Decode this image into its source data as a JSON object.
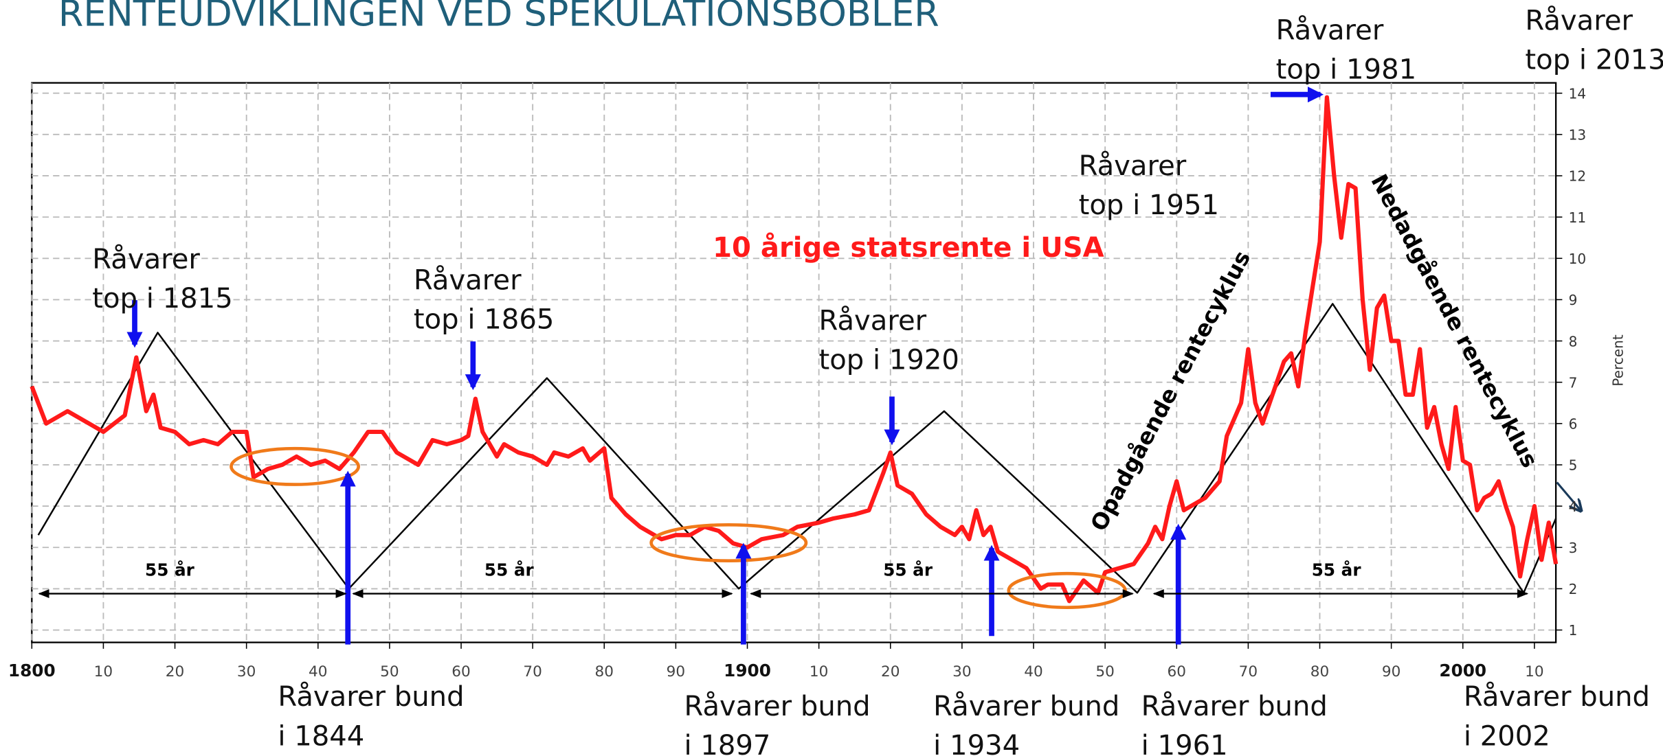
{
  "chart_data": {
    "type": "line",
    "title": "RENTEUDVIKLINGEN VED SPEKULATIONSBOBLER",
    "subtitle": "10 årige statsrente i USA",
    "y_label": "Percent",
    "xlim": [
      1800,
      2013
    ],
    "ylim": [
      0.7,
      14.25
    ],
    "xticks": [
      1800,
      {
        "value": 1810,
        "label": "10"
      },
      {
        "value": 1820,
        "label": "20"
      },
      {
        "value": 1830,
        "label": "30"
      },
      {
        "value": 1840,
        "label": "40"
      },
      {
        "value": 1850,
        "label": "50"
      },
      {
        "value": 1860,
        "label": "60"
      },
      {
        "value": 1870,
        "label": "70"
      },
      {
        "value": 1880,
        "label": "80"
      },
      {
        "value": 1890,
        "label": "90"
      },
      1900,
      {
        "value": 1910,
        "label": "10"
      },
      {
        "value": 1920,
        "label": "20"
      },
      {
        "value": 1930,
        "label": "30"
      },
      {
        "value": 1940,
        "label": "40"
      },
      {
        "value": 1950,
        "label": "50"
      },
      {
        "value": 1960,
        "label": "60"
      },
      {
        "value": 1970,
        "label": "70"
      },
      {
        "value": 1980,
        "label": "80"
      },
      {
        "value": 1990,
        "label": "90"
      },
      2000,
      {
        "value": 2010,
        "label": "10"
      }
    ],
    "yticks": [
      1,
      2,
      3,
      4,
      5,
      6,
      7,
      8,
      9,
      10,
      11,
      12,
      13,
      14
    ],
    "grid": true,
    "series": [
      {
        "color": "#ff1a1a",
        "x": [
          1800,
          1802,
          1805,
          1807,
          1810,
          1813,
          1814.6,
          1816,
          1817,
          1818,
          1820,
          1822,
          1824,
          1826,
          1828,
          1830,
          1831,
          1833,
          1835,
          1837,
          1839,
          1841,
          1843,
          1845,
          1847,
          1849,
          1851,
          1854,
          1856,
          1858,
          1860,
          1861,
          1862,
          1863,
          1865,
          1866,
          1868,
          1870,
          1872,
          1873,
          1875,
          1877,
          1878,
          1880,
          1881,
          1883,
          1885,
          1888,
          1890,
          1892,
          1894,
          1896,
          1898,
          1900,
          1902,
          1905,
          1907,
          1910,
          1912,
          1915,
          1917,
          1919,
          1920,
          1921,
          1923,
          1925,
          1927,
          1929,
          1930,
          1931,
          1932,
          1933,
          1934,
          1935,
          1937,
          1939,
          1941,
          1942,
          1944,
          1945,
          1947,
          1949,
          1950,
          1952,
          1954,
          1956,
          1957,
          1958,
          1959,
          1960,
          1961,
          1962,
          1964,
          1966,
          1967,
          1969,
          1970,
          1971,
          1972,
          1974,
          1975,
          1976,
          1977,
          1978,
          1979,
          1980,
          1981,
          1982,
          1983,
          1984,
          1985,
          1986,
          1987,
          1988,
          1989,
          1990,
          1991,
          1992,
          1993,
          1994,
          1995,
          1996,
          1997,
          1998,
          1999,
          2000,
          2001,
          2002,
          2003,
          2004,
          2005,
          2006,
          2007,
          2008,
          2009,
          2010,
          2011,
          2012,
          2013
        ],
        "values": [
          6.9,
          6.0,
          6.3,
          6.1,
          5.8,
          6.2,
          7.6,
          6.3,
          6.7,
          5.9,
          5.8,
          5.5,
          5.6,
          5.5,
          5.8,
          5.8,
          4.7,
          4.9,
          5.0,
          5.2,
          5.0,
          5.1,
          4.9,
          5.3,
          5.8,
          5.8,
          5.3,
          5.0,
          5.6,
          5.5,
          5.6,
          5.7,
          6.6,
          5.8,
          5.2,
          5.5,
          5.3,
          5.2,
          5.0,
          5.3,
          5.2,
          5.4,
          5.1,
          5.4,
          4.2,
          3.8,
          3.5,
          3.2,
          3.3,
          3.3,
          3.5,
          3.4,
          3.1,
          3.0,
          3.2,
          3.3,
          3.5,
          3.6,
          3.7,
          3.8,
          3.9,
          4.8,
          5.3,
          4.5,
          4.3,
          3.8,
          3.5,
          3.3,
          3.5,
          3.2,
          3.9,
          3.3,
          3.5,
          2.9,
          2.7,
          2.5,
          2.0,
          2.1,
          2.1,
          1.7,
          2.2,
          1.9,
          2.4,
          2.5,
          2.6,
          3.1,
          3.5,
          3.2,
          4.0,
          4.6,
          3.9,
          4.0,
          4.2,
          4.6,
          5.7,
          6.5,
          7.8,
          6.5,
          6.0,
          7.0,
          7.5,
          7.7,
          6.9,
          8.2,
          9.3,
          10.4,
          13.9,
          12.0,
          10.5,
          11.8,
          11.7,
          9.0,
          7.3,
          8.8,
          9.1,
          8.0,
          8.0,
          6.7,
          6.7,
          7.8,
          5.9,
          6.4,
          5.5,
          4.9,
          6.4,
          5.1,
          5.0,
          3.9,
          4.2,
          4.3,
          4.6,
          4.0,
          3.5,
          2.3,
          3.2,
          4.0,
          2.7,
          3.6,
          2.6
        ]
      },
      {
        "color": "#000000",
        "x": [
          1800.9,
          1817.6,
          1844.3,
          1872,
          1898.8,
          1927.5,
          1954.5,
          1981.8,
          2008.5,
          2013
        ],
        "values": [
          3.3,
          8.2,
          2.0,
          7.1,
          2.0,
          6.3,
          1.9,
          8.9,
          1.9,
          3.7
        ]
      }
    ],
    "cycle_labels": [
      "55 år",
      "55 år",
      "55 år",
      "55 år"
    ],
    "annotations": [
      [
        "Råvarer",
        "top i 1815"
      ],
      [
        "Råvarer",
        "top i 1865"
      ],
      [
        "Råvarer",
        "top i 1920"
      ],
      [
        "Råvarer",
        "top i 1951"
      ],
      [
        "Råvarer",
        "top i 1981"
      ],
      [
        "Råvarer",
        "top i 2013"
      ],
      [
        "Råvarer bund",
        "i 1844"
      ],
      [
        "Råvarer bund",
        "i 1897"
      ],
      [
        "Råvarer bund",
        "i 1934"
      ],
      [
        "Råvarer bund",
        "i 1961"
      ],
      [
        "Råvarer bund",
        "i 2002"
      ]
    ],
    "cycle_up": "Opadgående rentecyklus",
    "cycle_down": "Nedadgående rentecyklus"
  }
}
